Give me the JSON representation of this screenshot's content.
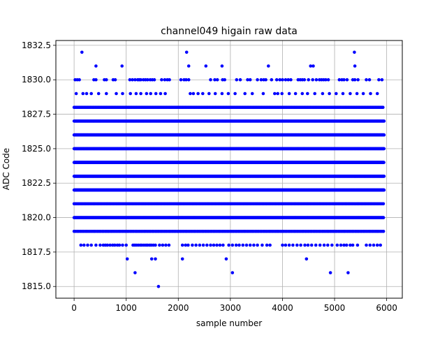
{
  "chart_data": {
    "type": "scatter",
    "title": "channel049 higain raw data",
    "xlabel": "sample number",
    "ylabel": "ADC Code",
    "xlim": [
      -350,
      6300
    ],
    "ylim": [
      1814.15,
      1832.85
    ],
    "xticks": [
      0,
      1000,
      2000,
      3000,
      4000,
      5000,
      6000
    ],
    "xtick_labels": [
      "0",
      "1000",
      "2000",
      "3000",
      "4000",
      "5000",
      "6000"
    ],
    "yticks": [
      1815.0,
      1817.5,
      1820.0,
      1822.5,
      1825.0,
      1827.5,
      1830.0,
      1832.5
    ],
    "ytick_labels": [
      "1815.0",
      "1817.5",
      "1820.0",
      "1822.5",
      "1825.0",
      "1827.5",
      "1830.0",
      "1832.5"
    ],
    "grid": true,
    "marker_color": "#0000ff",
    "series": [
      {
        "name": "",
        "x_range": [
          0,
          5950
        ],
        "levels": [
          {
            "y": 1818,
            "x": [
              130,
              190,
              260,
              330,
              420,
              500,
              560,
              600,
              640,
              690,
              740,
              780,
              830,
              870,
              930,
              1000,
              1130,
              1160,
              1190,
              1230,
              1270,
              1300,
              1340,
              1380,
              1410,
              1450,
              1480,
              1520,
              1560,
              1640,
              1700,
              1760,
              1820,
              2080,
              2140,
              2190,
              2270,
              2340,
              2410,
              2480,
              2550,
              2620,
              2680,
              2740,
              2800,
              2860,
              2970,
              3040,
              3110,
              3170,
              3240,
              3310,
              3380,
              3450,
              3520,
              3610,
              3700,
              3760,
              4000,
              4060,
              4130,
              4200,
              4280,
              4350,
              4430,
              4490,
              4560,
              4640,
              4720,
              4800,
              4870,
              4950,
              5050,
              5120,
              5180,
              5230,
              5300,
              5350,
              5440,
              5610,
              5680,
              5750,
              5820,
              5880
            ]
          },
          {
            "y": 1817,
            "x": [
              1020,
              1490,
              1560,
              2080,
              2920,
              4460
            ]
          },
          {
            "y": 1816,
            "x": [
              1170,
              3040,
              4920,
              5260
            ]
          },
          {
            "y": 1815,
            "x": [
              1620
            ]
          },
          {
            "y": 1829,
            "x": [
              40,
              170,
              240,
              330,
              470,
              620,
              810,
              930,
              1080,
              1190,
              1280,
              1390,
              1470,
              1570,
              1660,
              1750,
              2230,
              2290,
              2380,
              2470,
              2590,
              2710,
              2840,
              2960,
              3090,
              3280,
              3420,
              3630,
              3850,
              3910,
              3990,
              4130,
              4250,
              4380,
              4480,
              4620,
              4770,
              4900,
              5030,
              5160,
              5300,
              5430,
              5550,
              5690,
              5820
            ]
          },
          {
            "y": 1830,
            "x": [
              20,
              60,
              100,
              380,
              420,
              580,
              620,
              750,
              790,
              1070,
              1120,
              1170,
              1220,
              1250,
              1280,
              1330,
              1370,
              1410,
              1460,
              1500,
              1540,
              1680,
              1740,
              1790,
              1830,
              2050,
              2110,
              2150,
              2200,
              2620,
              2700,
              2750,
              2850,
              2890,
              3120,
              3190,
              3330,
              3380,
              3520,
              3590,
              3640,
              3680,
              3790,
              3890,
              3950,
              4000,
              4060,
              4110,
              4160,
              4300,
              4340,
              4380,
              4420,
              4500,
              4580,
              4650,
              4710,
              4750,
              4790,
              4830,
              4880,
              5090,
              5140,
              5180,
              5240,
              5350,
              5390,
              5450,
              5610,
              5670,
              5850,
              5910
            ]
          },
          {
            "y": 1831,
            "x": [
              420,
              920,
              2200,
              2530,
              2840,
              3730,
              4540,
              4590,
              5390
            ]
          },
          {
            "y": 1832,
            "x": [
              150,
              2160,
              5380
            ]
          }
        ],
        "dense_levels": [
          1819,
          1820,
          1821,
          1822,
          1823,
          1824,
          1825,
          1826,
          1827,
          1828
        ],
        "dense_spacing": [
          30,
          12,
          28,
          7,
          7,
          6,
          9,
          5,
          14,
          24
        ]
      }
    ]
  }
}
